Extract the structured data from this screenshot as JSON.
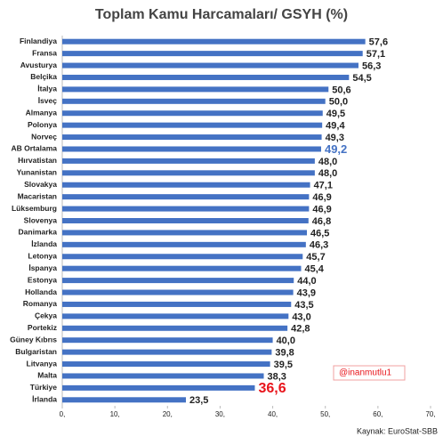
{
  "chart_data": {
    "type": "hbar",
    "title": "Toplam Kamu Harcamaları/ GSYH (%)",
    "categories": [
      "Finlandiya",
      "Fransa",
      "Avusturya",
      "Belçika",
      "İtalya",
      "İsveç",
      "Almanya",
      "Polonya",
      "Norveç",
      "AB Ortalama",
      "Hırvatistan",
      "Yunanistan",
      "Slovakya",
      "Macaristan",
      "Lüksemburg",
      "Slovenya",
      "Danimarka",
      "İzlanda",
      "Letonya",
      "İspanya",
      "Estonya",
      "Hollanda",
      "Romanya",
      "Çekya",
      "Portekiz",
      "Güney Kıbrıs",
      "Bulgaristan",
      "Litvanya",
      "Malta",
      "Türkiye",
      "İrlanda"
    ],
    "values": [
      57.6,
      57.1,
      56.3,
      54.5,
      50.6,
      50.0,
      49.5,
      49.4,
      49.3,
      49.2,
      48.0,
      48.0,
      47.1,
      46.9,
      46.9,
      46.8,
      46.5,
      46.3,
      45.7,
      45.4,
      44.0,
      43.9,
      43.5,
      43.0,
      42.8,
      40.0,
      39.8,
      39.5,
      38.3,
      36.6,
      23.5
    ],
    "value_labels": [
      "57,6",
      "57,1",
      "56,3",
      "54,5",
      "50,6",
      "50,0",
      "49,5",
      "49,4",
      "49,3",
      "49,2",
      "48,0",
      "48,0",
      "47,1",
      "46,9",
      "46,9",
      "46,8",
      "46,5",
      "46,3",
      "45,7",
      "45,4",
      "44,0",
      "43,9",
      "43,5",
      "43,0",
      "42,8",
      "40,0",
      "39,8",
      "39,5",
      "38,3",
      "36,6",
      "23,5"
    ],
    "color": "#4472c4",
    "highlight_labels": [
      {
        "index": 9,
        "color": "#4472c4"
      },
      {
        "index": 29,
        "color": "#e8141b"
      }
    ],
    "xlim": [
      0,
      70
    ],
    "xticks": [
      {
        "value": 0,
        "label": "0,"
      },
      {
        "value": 10,
        "label": "10,"
      },
      {
        "value": 20,
        "label": "20,"
      },
      {
        "value": 30,
        "label": "30,"
      },
      {
        "value": 40,
        "label": "40,"
      },
      {
        "value": 50,
        "label": "50,"
      },
      {
        "value": 60,
        "label": "60,"
      },
      {
        "value": 70,
        "label": "70,"
      }
    ],
    "grid": false,
    "annotation": "@inanmutlu1",
    "source": "Kaynak: EuroStat-SBB"
  }
}
